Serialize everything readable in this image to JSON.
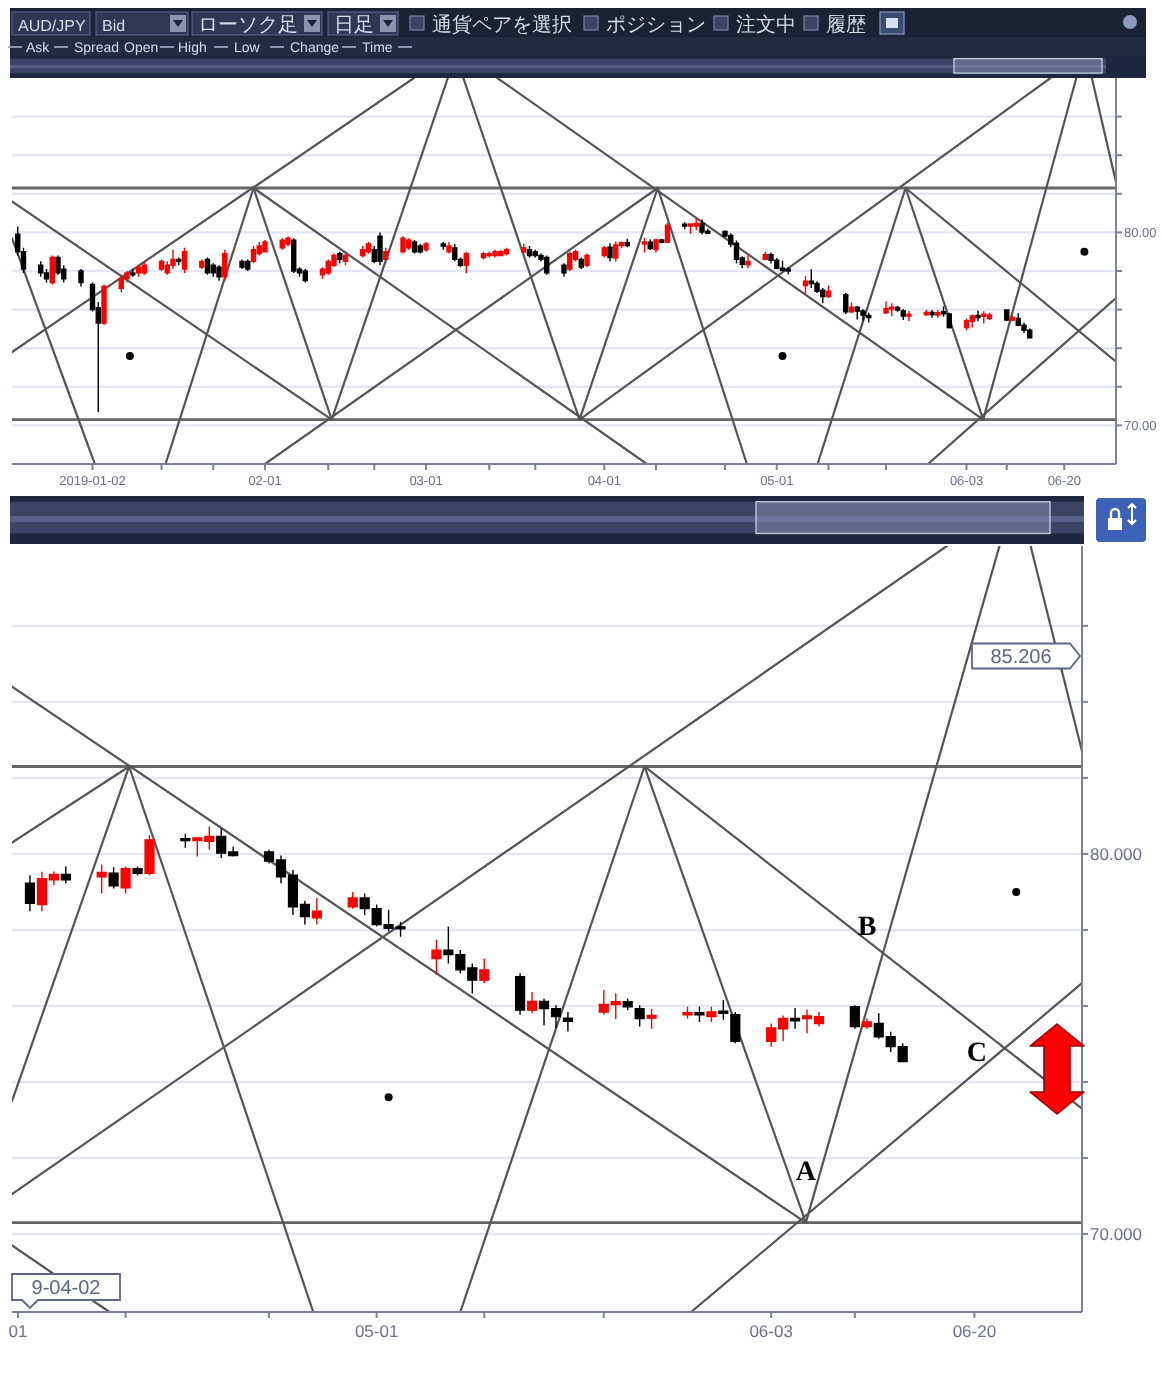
{
  "chart_data": [
    {
      "type": "other",
      "annotations": [
        "AUD/JPY",
        "Bid",
        "ローソク足",
        "日足",
        "通貨ペアを選択",
        "ポジション",
        "注文中",
        "履歴",
        "Ask",
        "Spread",
        "Open",
        "High",
        "Low",
        "Change",
        "Time"
      ]
    },
    {
      "type": "candlestick",
      "xlim": [
        "2018-12-19",
        "2019-06-29"
      ],
      "ylim": [
        68.0,
        88.0
      ],
      "grid": "y",
      "xticks": [
        {
          "value": "2019-01-02",
          "label": "2019-01-02"
        },
        {
          "value": "2019-01-14",
          "label": null
        },
        {
          "value": "2019-01-23",
          "label": null
        },
        {
          "value": "2019-02-01",
          "label": "02-01"
        },
        {
          "value": "2019-02-12",
          "label": null
        },
        {
          "value": "2019-02-20",
          "label": null
        },
        {
          "value": "2019-03-01",
          "label": "03-01"
        },
        {
          "value": "2019-03-12",
          "label": null
        },
        {
          "value": "2019-03-20",
          "label": null
        },
        {
          "value": "2019-04-01",
          "label": "04-01"
        },
        {
          "value": "2019-04-10",
          "label": null
        },
        {
          "value": "2019-04-22",
          "label": null
        },
        {
          "value": "2019-05-01",
          "label": "05-01"
        },
        {
          "value": "2019-05-10",
          "label": null
        },
        {
          "value": "2019-05-20",
          "label": null
        },
        {
          "value": "2019-06-03",
          "label": "06-03"
        },
        {
          "value": "2019-06-10",
          "label": null
        },
        {
          "value": "2019-06-20",
          "label": "06-20"
        }
      ],
      "yticks": [
        {
          "value": 70,
          "label": "70.00"
        },
        {
          "value": 72,
          "label": null
        },
        {
          "value": 74,
          "label": null
        },
        {
          "value": 76,
          "label": null
        },
        {
          "value": 78,
          "label": null
        },
        {
          "value": 80,
          "label": "80.00"
        },
        {
          "value": 82,
          "label": null
        },
        {
          "value": 84,
          "label": null
        },
        {
          "value": 86,
          "label": null
        }
      ],
      "x": [
        "2018-12-20",
        "2018-12-21",
        "2018-12-24",
        "2018-12-25",
        "2018-12-26",
        "2018-12-27",
        "2018-12-28",
        "2018-12-31",
        "2019-01-02",
        "2019-01-03",
        "2019-01-04",
        "2019-01-07",
        "2019-01-08",
        "2019-01-09",
        "2019-01-10",
        "2019-01-11",
        "2019-01-14",
        "2019-01-15",
        "2019-01-16",
        "2019-01-17",
        "2019-01-18",
        "2019-01-21",
        "2019-01-22",
        "2019-01-23",
        "2019-01-24",
        "2019-01-25",
        "2019-01-28",
        "2019-01-29",
        "2019-01-30",
        "2019-01-31",
        "2019-02-01",
        "2019-02-04",
        "2019-02-05",
        "2019-02-06",
        "2019-02-07",
        "2019-02-08",
        "2019-02-11",
        "2019-02-12",
        "2019-02-13",
        "2019-02-14",
        "2019-02-15",
        "2019-02-18",
        "2019-02-19",
        "2019-02-20",
        "2019-02-21",
        "2019-02-22",
        "2019-02-25",
        "2019-02-26",
        "2019-02-27",
        "2019-02-28",
        "2019-03-01",
        "2019-03-04",
        "2019-03-05",
        "2019-03-06",
        "2019-03-07",
        "2019-03-08",
        "2019-03-11",
        "2019-03-12",
        "2019-03-13",
        "2019-03-14",
        "2019-03-15",
        "2019-03-18",
        "2019-03-19",
        "2019-03-20",
        "2019-03-21",
        "2019-03-22",
        "2019-03-25",
        "2019-03-26",
        "2019-03-27",
        "2019-03-28",
        "2019-03-29",
        "2019-04-01",
        "2019-04-02",
        "2019-04-03",
        "2019-04-04",
        "2019-04-05",
        "2019-04-08",
        "2019-04-09",
        "2019-04-10",
        "2019-04-11",
        "2019-04-12",
        "2019-04-15",
        "2019-04-16",
        "2019-04-17",
        "2019-04-18",
        "2019-04-19",
        "2019-04-22",
        "2019-04-23",
        "2019-04-24",
        "2019-04-25",
        "2019-04-26",
        "2019-04-29",
        "2019-04-30",
        "2019-05-01",
        "2019-05-02",
        "2019-05-03",
        "2019-05-06",
        "2019-05-07",
        "2019-05-08",
        "2019-05-09",
        "2019-05-10",
        "2019-05-13",
        "2019-05-14",
        "2019-05-15",
        "2019-05-16",
        "2019-05-17",
        "2019-05-20",
        "2019-05-21",
        "2019-05-22",
        "2019-05-23",
        "2019-05-24",
        "2019-05-27",
        "2019-05-28",
        "2019-05-29",
        "2019-05-30",
        "2019-05-31",
        "2019-06-03",
        "2019-06-04",
        "2019-06-05",
        "2019-06-06",
        "2019-06-07",
        "2019-06-10",
        "2019-06-11",
        "2019-06-12",
        "2019-06-13",
        "2019-06-14"
      ],
      "ohlc": [
        [
          79.9,
          80.3,
          78.8,
          79.0
        ],
        [
          79.0,
          79.2,
          77.9,
          78.1
        ],
        [
          78.3,
          78.5,
          77.7,
          77.9
        ],
        [
          77.9,
          78.1,
          77.4,
          77.6
        ],
        [
          77.4,
          78.8,
          77.3,
          78.7
        ],
        [
          78.7,
          78.8,
          77.8,
          77.9
        ],
        [
          78.1,
          78.3,
          77.4,
          77.6
        ],
        [
          78.0,
          78.1,
          77.2,
          77.4
        ],
        [
          77.3,
          77.4,
          75.9,
          76.0
        ],
        [
          76.1,
          76.4,
          70.7,
          75.3
        ],
        [
          75.3,
          77.3,
          75.2,
          77.2
        ],
        [
          77.1,
          77.8,
          76.9,
          77.6
        ],
        [
          77.6,
          78.0,
          77.4,
          77.9
        ],
        [
          77.9,
          78.1,
          77.7,
          77.8
        ],
        [
          77.9,
          78.3,
          77.7,
          78.2
        ],
        [
          77.9,
          78.5,
          77.8,
          78.3
        ],
        [
          78.1,
          78.6,
          78.0,
          78.5
        ],
        [
          77.9,
          78.5,
          77.8,
          78.3
        ],
        [
          78.3,
          79.1,
          78.1,
          78.6
        ],
        [
          78.6,
          78.7,
          78.3,
          78.5
        ],
        [
          78.1,
          79.2,
          77.9,
          79.0
        ],
        [
          78.2,
          78.6,
          78.1,
          78.5
        ],
        [
          78.6,
          78.7,
          77.8,
          77.9
        ],
        [
          78.3,
          78.4,
          77.7,
          77.9
        ],
        [
          78.2,
          78.3,
          77.5,
          77.7
        ],
        [
          77.7,
          79.1,
          77.5,
          78.9
        ],
        [
          78.5,
          78.6,
          78.1,
          78.2
        ],
        [
          78.5,
          78.6,
          78.0,
          78.1
        ],
        [
          78.5,
          79.3,
          78.4,
          79.1
        ],
        [
          78.9,
          79.5,
          78.8,
          79.3
        ],
        [
          79.0,
          79.6,
          79.0,
          79.5
        ],
        [
          79.2,
          79.7,
          79.1,
          79.6
        ],
        [
          79.4,
          79.8,
          79.3,
          79.7
        ],
        [
          79.6,
          79.7,
          77.9,
          78.0
        ],
        [
          78.1,
          78.2,
          77.7,
          77.9
        ],
        [
          78.0,
          78.1,
          77.4,
          77.5
        ],
        [
          77.8,
          78.2,
          77.6,
          78.1
        ],
        [
          77.9,
          78.6,
          77.8,
          78.5
        ],
        [
          78.3,
          78.9,
          78.2,
          78.8
        ],
        [
          78.9,
          79.0,
          78.4,
          78.6
        ],
        [
          78.5,
          78.9,
          78.3,
          78.8
        ],
        [
          78.8,
          79.3,
          78.7,
          79.1
        ],
        [
          79.0,
          79.5,
          78.9,
          79.4
        ],
        [
          79.1,
          79.3,
          78.4,
          78.5
        ],
        [
          79.8,
          80.0,
          78.3,
          78.5
        ],
        [
          78.6,
          79.2,
          78.5,
          79.0
        ],
        [
          79.0,
          79.8,
          78.9,
          79.7
        ],
        [
          79.2,
          79.7,
          79.1,
          79.6
        ],
        [
          79.5,
          79.6,
          78.9,
          79.0
        ],
        [
          79.3,
          79.4,
          78.9,
          79.0
        ],
        [
          79.1,
          79.5,
          79.0,
          79.4
        ],
        [
          79.4,
          79.5,
          79.1,
          79.3
        ],
        [
          79.0,
          79.5,
          78.9,
          79.3
        ],
        [
          79.2,
          79.4,
          78.5,
          78.6
        ],
        [
          78.6,
          78.7,
          78.2,
          78.3
        ],
        [
          78.3,
          79.0,
          77.9,
          78.9
        ],
        [
          78.7,
          79.0,
          78.6,
          78.9
        ],
        [
          78.8,
          79.0,
          78.7,
          78.9
        ],
        [
          78.8,
          79.1,
          78.7,
          79.0
        ],
        [
          78.8,
          79.1,
          78.8,
          79.0
        ],
        [
          78.9,
          79.2,
          78.8,
          79.1
        ],
        [
          79.0,
          79.4,
          78.9,
          79.2
        ],
        [
          79.1,
          79.3,
          78.7,
          78.8
        ],
        [
          79.0,
          79.1,
          78.7,
          78.8
        ],
        [
          78.8,
          78.9,
          78.5,
          78.6
        ],
        [
          78.7,
          78.8,
          77.8,
          77.9
        ],
        [
          78.3,
          78.4,
          77.7,
          77.9
        ],
        [
          78.1,
          79.0,
          78.0,
          78.9
        ],
        [
          78.6,
          79.1,
          78.5,
          79.0
        ],
        [
          78.6,
          78.7,
          78.1,
          78.2
        ],
        [
          78.3,
          78.9,
          78.2,
          78.8
        ],
        [
          78.8,
          79.3,
          78.7,
          79.2
        ],
        [
          79.23,
          79.44,
          78.49,
          78.7
        ],
        [
          78.67,
          79.53,
          78.49,
          79.35
        ],
        [
          79.32,
          79.54,
          79.18,
          79.46
        ],
        [
          79.46,
          79.67,
          79.23,
          79.32
        ],
        [
          79.4,
          79.72,
          78.96,
          79.51
        ],
        [
          79.49,
          79.65,
          79.09,
          79.16
        ],
        [
          79.11,
          79.67,
          78.96,
          79.61
        ],
        [
          79.61,
          79.67,
          79.44,
          79.49
        ],
        [
          79.49,
          80.49,
          79.44,
          80.37
        ],
        [
          80.4,
          80.53,
          80.16,
          80.35
        ],
        [
          80.35,
          80.44,
          79.93,
          80.42
        ],
        [
          80.33,
          80.72,
          80.11,
          80.46
        ],
        [
          80.46,
          80.67,
          79.89,
          80.02
        ],
        [
          80.05,
          80.19,
          79.93,
          79.96
        ],
        [
          80.05,
          80.11,
          79.75,
          79.81
        ],
        [
          79.84,
          79.96,
          79.23,
          79.4
        ],
        [
          79.44,
          79.58,
          78.39,
          78.61
        ],
        [
          78.67,
          78.77,
          78.14,
          78.35
        ],
        [
          78.32,
          78.84,
          78.14,
          78.49
        ],
        [
          78.61,
          79.0,
          78.56,
          78.84
        ],
        [
          78.84,
          78.96,
          78.39,
          78.56
        ],
        [
          78.56,
          78.67,
          78.09,
          78.14
        ],
        [
          78.14,
          78.53,
          77.96,
          78.04
        ],
        [
          78.07,
          78.21,
          77.82,
          78.04
        ],
        [
          77.25,
          77.74,
          76.82,
          77.47
        ],
        [
          77.47,
          78.09,
          77.12,
          77.35
        ],
        [
          77.35,
          77.47,
          76.86,
          76.95
        ],
        [
          77.0,
          77.12,
          76.33,
          76.68
        ],
        [
          76.68,
          77.25,
          76.6,
          76.95
        ],
        [
          76.77,
          76.86,
          75.77,
          75.89
        ],
        [
          75.89,
          76.37,
          75.81,
          76.12
        ],
        [
          76.12,
          76.19,
          75.49,
          75.93
        ],
        [
          75.93,
          76.02,
          75.42,
          75.72
        ],
        [
          75.68,
          75.84,
          75.33,
          75.6
        ],
        [
          75.84,
          76.42,
          75.77,
          76.04
        ],
        [
          76.04,
          76.33,
          75.66,
          76.11
        ],
        [
          76.11,
          76.19,
          75.89,
          75.98
        ],
        [
          75.93,
          76.02,
          75.46,
          75.67
        ],
        [
          75.68,
          75.93,
          75.4,
          75.75
        ],
        [
          75.77,
          75.98,
          75.67,
          75.82
        ],
        [
          75.82,
          75.98,
          75.58,
          75.77
        ],
        [
          75.72,
          75.98,
          75.58,
          75.84
        ],
        [
          75.86,
          76.16,
          75.63,
          75.81
        ],
        [
          75.77,
          75.84,
          75.02,
          75.07
        ],
        [
          75.07,
          75.54,
          74.93,
          75.42
        ],
        [
          75.4,
          75.75,
          75.07,
          75.67
        ],
        [
          75.67,
          75.95,
          75.4,
          75.61
        ],
        [
          75.67,
          75.91,
          75.28,
          75.74
        ],
        [
          75.54,
          75.84,
          75.46,
          75.72
        ],
        [
          75.98,
          76.02,
          75.4,
          75.46
        ],
        [
          75.46,
          75.67,
          75.4,
          75.58
        ],
        [
          75.54,
          75.81,
          75.14,
          75.19
        ],
        [
          75.19,
          75.32,
          74.79,
          74.93
        ],
        [
          74.93,
          75.02,
          74.53,
          74.54
        ]
      ],
      "colors": [
        "#000000",
        "#000000",
        "#000000",
        "#000000",
        "#ff0000",
        "#000000",
        "#000000",
        "#000000",
        "#000000",
        "#000000",
        "#ff0000",
        "#ff0000",
        "#ff0000",
        "#000000",
        "#ff0000",
        "#ff0000",
        "#ff0000",
        "#ff0000",
        "#ff0000",
        "#000000",
        "#ff0000",
        "#ff0000",
        "#000000",
        "#000000",
        "#000000",
        "#ff0000",
        "#000000",
        "#000000",
        "#ff0000",
        "#ff0000",
        "#ff0000",
        "#ff0000",
        "#ff0000",
        "#000000",
        "#000000",
        "#000000",
        "#ff0000",
        "#ff0000",
        "#ff0000",
        "#000000",
        "#ff0000",
        "#ff0000",
        "#ff0000",
        "#000000",
        "#000000",
        "#ff0000",
        "#ff0000",
        "#ff0000",
        "#000000",
        "#000000",
        "#ff0000",
        "#000000",
        "#ff0000",
        "#000000",
        "#000000",
        "#ff0000",
        "#ff0000",
        "#ff0000",
        "#ff0000",
        "#ff0000",
        "#ff0000",
        "#ff0000",
        "#000000",
        "#000000",
        "#000000",
        "#000000",
        "#000000",
        "#ff0000",
        "#ff0000",
        "#000000",
        "#ff0000",
        "#ff0000",
        "#000000",
        "#ff0000",
        "#ff0000",
        "#000000",
        "#ff0000",
        "#000000",
        "#ff0000",
        "#000000",
        "#ff0000",
        "#000000",
        "#ff0000",
        "#ff0000",
        "#000000",
        "#000000",
        "#000000",
        "#000000",
        "#000000",
        "#000000",
        "#ff0000",
        "#ff0000",
        "#000000",
        "#000000",
        "#000000",
        "#000000",
        "#ff0000",
        "#000000",
        "#000000",
        "#000000",
        "#ff0000",
        "#000000",
        "#ff0000",
        "#000000",
        "#000000",
        "#000000",
        "#ff0000",
        "#ff0000",
        "#000000",
        "#000000",
        "#ff0000",
        "#ff0000",
        "#000000",
        "#ff0000",
        "#000000",
        "#000000",
        "#ff0000",
        "#ff0000",
        "#000000",
        "#ff0000",
        "#ff0000",
        "#000000",
        "#ff0000",
        "#000000",
        "#000000",
        "#000000"
      ],
      "ref_lines": [
        {
          "axis": "y",
          "value": 82.3,
          "color": "#666666"
        },
        {
          "axis": "y",
          "value": 70.3,
          "color": "#666666"
        }
      ],
      "series": [
        {
          "type": "line",
          "color": "#555555",
          "x": [
            "2018-12-19",
            "2019-02-26T21:36"
          ],
          "values": [
            73.8,
            88.0
          ]
        },
        {
          "type": "line",
          "color": "#555555",
          "x": [
            "2018-12-19",
            "2019-02-12T14:24"
          ],
          "values": [
            81.6,
            70.3
          ]
        },
        {
          "type": "line",
          "color": "#555555",
          "x": [
            "2019-01-30",
            "2019-02-12T14:24"
          ],
          "values": [
            82.3,
            70.3
          ]
        },
        {
          "type": "line",
          "color": "#555555",
          "x": [
            "2019-01-30",
            "2019-01-14T16:48"
          ],
          "values": [
            82.3,
            68.0
          ]
        },
        {
          "type": "line",
          "color": "#555555",
          "x": [
            "2019-01-30",
            "2019-04-08T09:36"
          ],
          "values": [
            82.3,
            68.0
          ]
        },
        {
          "type": "line",
          "color": "#555555",
          "x": [
            "2018-12-19",
            "2019-01-02T09:36"
          ],
          "values": [
            79.7,
            68.0
          ]
        },
        {
          "type": "line",
          "color": "#555555",
          "x": [
            "2019-02-12T14:24",
            "2019-03-04T19:12"
          ],
          "values": [
            70.3,
            88.0
          ]
        },
        {
          "type": "line",
          "color": "#555555",
          "x": [
            "2019-03-07T12:00",
            "2019-03-27T16:48"
          ],
          "values": [
            88.0,
            70.3
          ]
        },
        {
          "type": "line",
          "color": "#555555",
          "x": [
            "2019-02-01",
            "2019-04-10T07:12"
          ],
          "values": [
            68.0,
            82.3
          ]
        },
        {
          "type": "line",
          "color": "#555555",
          "x": [
            "2019-03-13T09:36",
            "2019-06-05T21:36"
          ],
          "values": [
            88.0,
            70.3
          ]
        },
        {
          "type": "line",
          "color": "#555555",
          "x": [
            "2019-03-27T16:48",
            "2019-04-10T07:12"
          ],
          "values": [
            70.3,
            82.3
          ]
        },
        {
          "type": "line",
          "color": "#555555",
          "x": [
            "2019-03-27T16:48",
            "2019-06-17T14:24"
          ],
          "values": [
            70.3,
            88.0
          ]
        },
        {
          "type": "line",
          "color": "#555555",
          "x": [
            "2019-04-10T07:12",
            "2019-04-25T19:12"
          ],
          "values": [
            82.3,
            68.0
          ]
        },
        {
          "type": "line",
          "color": "#555555",
          "x": [
            "2019-05-23T09:36",
            "2019-05-08T02:24"
          ],
          "values": [
            82.3,
            68.0
          ]
        },
        {
          "type": "line",
          "color": "#555555",
          "x": [
            "2019-05-23T09:36",
            "2019-06-05T21:36"
          ],
          "values": [
            82.3,
            70.3
          ]
        },
        {
          "type": "line",
          "color": "#555555",
          "x": [
            "2019-05-23T09:36",
            "2019-06-29"
          ],
          "values": [
            82.3,
            73.3
          ]
        },
        {
          "type": "line",
          "color": "#555555",
          "x": [
            "2019-06-05T21:36",
            "2019-06-22T02:24"
          ],
          "values": [
            70.3,
            88.0
          ]
        },
        {
          "type": "line",
          "color": "#555555",
          "x": [
            "2019-06-24T19:12",
            "2019-06-29"
          ],
          "values": [
            88.0,
            82.6
          ]
        },
        {
          "type": "line",
          "color": "#555555",
          "x": [
            "2019-05-27T07:12",
            "2019-06-29"
          ],
          "values": [
            68.0,
            76.6
          ]
        },
        {
          "type": "scatter",
          "color": "#000000",
          "marker": "circle",
          "x": [
            "2019-01-08T12:00",
            "2019-05-02",
            "2019-06-23T12:00"
          ],
          "values": [
            73.6,
            73.6,
            79.0
          ]
        }
      ]
    },
    {
      "type": "candlestick",
      "xlim": [
        "2019-03-31T12:00",
        "2019-06-29"
      ],
      "ylim": [
        67.95,
        88.1
      ],
      "grid": "y",
      "xticks": [
        {
          "value": "2019-04-01",
          "label": "01"
        },
        {
          "value": "2019-04-10",
          "label": null
        },
        {
          "value": "2019-04-22",
          "label": null
        },
        {
          "value": "2019-05-01",
          "label": "05-01"
        },
        {
          "value": "2019-05-10",
          "label": null
        },
        {
          "value": "2019-05-20",
          "label": null
        },
        {
          "value": "2019-06-03",
          "label": "06-03"
        },
        {
          "value": "2019-06-10",
          "label": null
        },
        {
          "value": "2019-06-20",
          "label": "06-20"
        }
      ],
      "yticks": [
        {
          "value": 70,
          "label": "70.000"
        },
        {
          "value": 72,
          "label": null
        },
        {
          "value": 74,
          "label": null
        },
        {
          "value": 76,
          "label": null
        },
        {
          "value": 78,
          "label": null
        },
        {
          "value": 80,
          "label": "80.000"
        },
        {
          "value": 82,
          "label": null
        },
        {
          "value": 84,
          "label": null
        },
        {
          "value": 86,
          "label": null
        }
      ],
      "x": [
        "2019-04-02",
        "2019-04-03",
        "2019-04-04",
        "2019-04-05",
        "2019-04-08",
        "2019-04-09",
        "2019-04-10",
        "2019-04-11",
        "2019-04-12",
        "2019-04-15",
        "2019-04-16",
        "2019-04-17",
        "2019-04-18",
        "2019-04-19",
        "2019-04-22",
        "2019-04-23",
        "2019-04-24",
        "2019-04-25",
        "2019-04-26",
        "2019-04-29",
        "2019-04-30",
        "2019-05-01",
        "2019-05-02",
        "2019-05-03",
        "2019-05-06",
        "2019-05-07",
        "2019-05-08",
        "2019-05-09",
        "2019-05-10",
        "2019-05-13",
        "2019-05-14",
        "2019-05-15",
        "2019-05-16",
        "2019-05-17",
        "2019-05-20",
        "2019-05-21",
        "2019-05-22",
        "2019-05-23",
        "2019-05-24",
        "2019-05-27",
        "2019-05-28",
        "2019-05-29",
        "2019-05-30",
        "2019-05-31",
        "2019-06-03",
        "2019-06-04",
        "2019-06-05",
        "2019-06-06",
        "2019-06-07",
        "2019-06-10",
        "2019-06-11",
        "2019-06-12",
        "2019-06-13",
        "2019-06-14"
      ],
      "ohlc": [
        [
          79.23,
          79.44,
          78.49,
          78.7
        ],
        [
          78.67,
          79.53,
          78.49,
          79.35
        ],
        [
          79.32,
          79.54,
          79.18,
          79.46
        ],
        [
          79.46,
          79.67,
          79.23,
          79.32
        ],
        [
          79.4,
          79.72,
          78.96,
          79.51
        ],
        [
          79.49,
          79.65,
          79.09,
          79.16
        ],
        [
          79.11,
          79.67,
          78.96,
          79.61
        ],
        [
          79.61,
          79.67,
          79.44,
          79.49
        ],
        [
          79.49,
          80.49,
          79.44,
          80.37
        ],
        [
          80.4,
          80.53,
          80.16,
          80.35
        ],
        [
          80.35,
          80.44,
          79.93,
          80.42
        ],
        [
          80.33,
          80.72,
          80.11,
          80.46
        ],
        [
          80.46,
          80.67,
          79.89,
          80.02
        ],
        [
          80.05,
          80.19,
          79.93,
          79.96
        ],
        [
          80.05,
          80.11,
          79.75,
          79.81
        ],
        [
          79.84,
          79.96,
          79.23,
          79.4
        ],
        [
          79.44,
          79.58,
          78.39,
          78.61
        ],
        [
          78.67,
          78.77,
          78.14,
          78.35
        ],
        [
          78.32,
          78.84,
          78.14,
          78.49
        ],
        [
          78.61,
          79.0,
          78.56,
          78.84
        ],
        [
          78.84,
          78.96,
          78.39,
          78.56
        ],
        [
          78.56,
          78.67,
          78.09,
          78.14
        ],
        [
          78.14,
          78.53,
          77.96,
          78.04
        ],
        [
          78.07,
          78.21,
          77.82,
          78.04
        ],
        [
          77.25,
          77.74,
          76.82,
          77.47
        ],
        [
          77.47,
          78.09,
          77.12,
          77.35
        ],
        [
          77.35,
          77.47,
          76.86,
          76.95
        ],
        [
          77.0,
          77.12,
          76.33,
          76.68
        ],
        [
          76.68,
          77.25,
          76.6,
          76.95
        ],
        [
          76.77,
          76.86,
          75.77,
          75.89
        ],
        [
          75.89,
          76.37,
          75.81,
          76.12
        ],
        [
          76.12,
          76.19,
          75.49,
          75.93
        ],
        [
          75.93,
          76.02,
          75.42,
          75.72
        ],
        [
          75.68,
          75.84,
          75.33,
          75.6
        ],
        [
          75.84,
          76.42,
          75.77,
          76.04
        ],
        [
          76.04,
          76.33,
          75.66,
          76.11
        ],
        [
          76.11,
          76.19,
          75.89,
          75.98
        ],
        [
          75.93,
          76.02,
          75.46,
          75.67
        ],
        [
          75.68,
          75.93,
          75.4,
          75.75
        ],
        [
          75.77,
          75.98,
          75.67,
          75.82
        ],
        [
          75.82,
          75.98,
          75.58,
          75.77
        ],
        [
          75.72,
          75.98,
          75.58,
          75.84
        ],
        [
          75.86,
          76.16,
          75.63,
          75.81
        ],
        [
          75.77,
          75.84,
          75.02,
          75.07
        ],
        [
          75.07,
          75.54,
          74.93,
          75.42
        ],
        [
          75.4,
          75.75,
          75.07,
          75.67
        ],
        [
          75.67,
          75.95,
          75.4,
          75.61
        ],
        [
          75.67,
          75.91,
          75.28,
          75.74
        ],
        [
          75.54,
          75.84,
          75.46,
          75.72
        ],
        [
          75.98,
          76.02,
          75.4,
          75.46
        ],
        [
          75.46,
          75.67,
          75.4,
          75.58
        ],
        [
          75.54,
          75.81,
          75.14,
          75.19
        ],
        [
          75.19,
          75.32,
          74.79,
          74.93
        ],
        [
          74.93,
          75.02,
          74.53,
          74.54
        ]
      ],
      "colors": [
        "#000000",
        "#ff0000",
        "#ff0000",
        "#000000",
        "#ff0000",
        "#000000",
        "#ff0000",
        "#000000",
        "#ff0000",
        "#000000",
        "#ff0000",
        "#ff0000",
        "#000000",
        "#000000",
        "#000000",
        "#000000",
        "#000000",
        "#000000",
        "#ff0000",
        "#ff0000",
        "#000000",
        "#000000",
        "#000000",
        "#000000",
        "#ff0000",
        "#000000",
        "#000000",
        "#000000",
        "#ff0000",
        "#000000",
        "#ff0000",
        "#000000",
        "#000000",
        "#000000",
        "#ff0000",
        "#ff0000",
        "#000000",
        "#000000",
        "#ff0000",
        "#ff0000",
        "#000000",
        "#ff0000",
        "#000000",
        "#000000",
        "#ff0000",
        "#ff0000",
        "#000000",
        "#ff0000",
        "#ff0000",
        "#000000",
        "#ff0000",
        "#000000",
        "#000000",
        "#000000"
      ],
      "ref_lines": [
        {
          "axis": "y",
          "value": 82.3,
          "color": "#666666"
        },
        {
          "axis": "y",
          "value": 70.3,
          "color": "#666666"
        }
      ],
      "series": [
        {
          "type": "line",
          "color": "#555555",
          "x": [
            "2019-03-31T12:00",
            "2019-06-05T21:36"
          ],
          "values": [
            84.4,
            70.3
          ]
        },
        {
          "type": "line",
          "color": "#555555",
          "x": [
            "2019-03-31T12:00",
            "2019-04-10T07:12"
          ],
          "values": [
            80.3,
            82.3
          ]
        },
        {
          "type": "line",
          "color": "#555555",
          "x": [
            "2019-04-10T07:12",
            "2019-03-31T12:00"
          ],
          "values": [
            82.3,
            73.5
          ]
        },
        {
          "type": "line",
          "color": "#555555",
          "x": [
            "2019-04-10T07:12",
            "2019-04-25T16:48"
          ],
          "values": [
            82.3,
            67.95
          ]
        },
        {
          "type": "line",
          "color": "#555555",
          "x": [
            "2019-03-31T12:00",
            "2019-06-17T16:48"
          ],
          "values": [
            71.05,
            88.1
          ]
        },
        {
          "type": "line",
          "color": "#555555",
          "x": [
            "2019-05-23T09:36",
            "2019-05-08"
          ],
          "values": [
            82.3,
            67.95
          ]
        },
        {
          "type": "line",
          "color": "#555555",
          "x": [
            "2019-05-23T09:36",
            "2019-06-05T21:36"
          ],
          "values": [
            82.3,
            70.3
          ]
        },
        {
          "type": "line",
          "color": "#555555",
          "x": [
            "2019-05-23T09:36",
            "2019-06-29"
          ],
          "values": [
            82.3,
            73.3
          ]
        },
        {
          "type": "line",
          "color": "#555555",
          "x": [
            "2019-06-05T21:36",
            "2019-06-22T02:24"
          ],
          "values": [
            70.3,
            88.1
          ]
        },
        {
          "type": "line",
          "color": "#555555",
          "x": [
            "2019-06-24T16:48",
            "2019-06-29"
          ],
          "values": [
            88.1,
            82.7
          ]
        },
        {
          "type": "line",
          "color": "#555555",
          "x": [
            "2019-05-27T07:12",
            "2019-06-29"
          ],
          "values": [
            67.95,
            76.6
          ]
        },
        {
          "type": "line",
          "color": "#555555",
          "x": [
            "2019-03-31T12:00",
            "2019-04-08T15:36"
          ],
          "values": [
            69.7,
            67.95
          ]
        },
        {
          "type": "scatter",
          "color": "#000000",
          "marker": "circle",
          "x": [
            "2019-05-02",
            "2019-06-23T12:00"
          ],
          "values": [
            73.6,
            79.0
          ]
        }
      ],
      "annotations": [
        "85.206",
        "9-04-02",
        {
          "text": "A",
          "x": "2019-06-05T21:36",
          "y": 70.3
        },
        {
          "text": "B",
          "x": "2019-06-12T08:38",
          "y": 77.4
        },
        {
          "text": "C",
          "x": "2019-06-22T13:00",
          "y": 74.9
        }
      ]
    }
  ]
}
